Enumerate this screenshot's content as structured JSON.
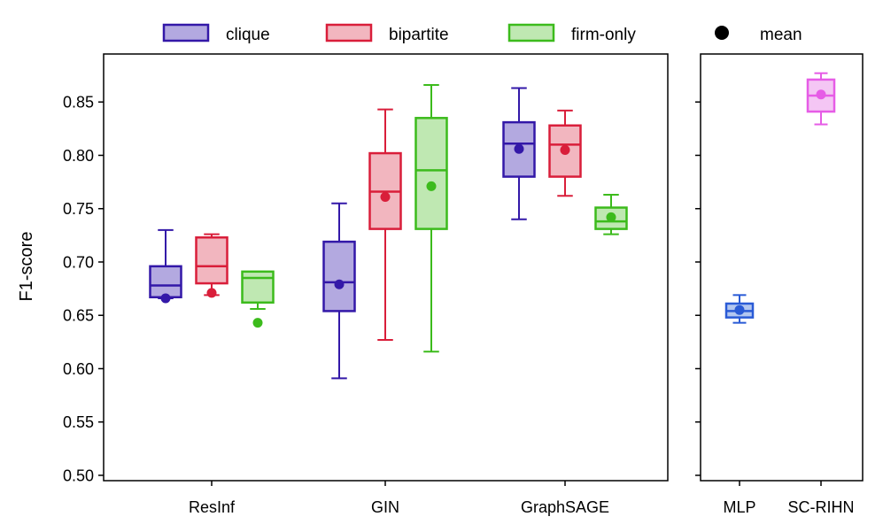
{
  "chart_data": [
    {
      "type": "box",
      "panel": "left",
      "ylabel": "F1-score",
      "ylim": [
        0.495,
        0.895
      ],
      "yticks": [
        "0.50",
        "0.55",
        "0.60",
        "0.65",
        "0.70",
        "0.75",
        "0.80",
        "0.85"
      ],
      "categories": [
        "ResInf",
        "GIN",
        "GraphSAGE"
      ],
      "series": [
        {
          "name": "clique",
          "edge_color": "#3318a8",
          "fill_color": "#b3a9e0",
          "boxes": [
            {
              "min": 0.666,
              "q1": 0.667,
              "median": 0.678,
              "q3": 0.696,
              "max": 0.73,
              "mean": 0.666
            },
            {
              "min": 0.591,
              "q1": 0.654,
              "median": 0.681,
              "q3": 0.719,
              "max": 0.755,
              "mean": 0.679
            },
            {
              "min": 0.74,
              "q1": 0.78,
              "median": 0.811,
              "q3": 0.831,
              "max": 0.863,
              "mean": 0.806
            }
          ]
        },
        {
          "name": "bipartite",
          "edge_color": "#d91e3a",
          "fill_color": "#f2b6bf",
          "boxes": [
            {
              "min": 0.669,
              "q1": 0.68,
              "median": 0.696,
              "q3": 0.723,
              "max": 0.726,
              "mean": 0.671
            },
            {
              "min": 0.627,
              "q1": 0.731,
              "median": 0.766,
              "q3": 0.802,
              "max": 0.843,
              "mean": 0.761
            },
            {
              "min": 0.762,
              "q1": 0.78,
              "median": 0.81,
              "q3": 0.828,
              "max": 0.842,
              "mean": 0.805
            }
          ]
        },
        {
          "name": "firm-only",
          "edge_color": "#3cbb1c",
          "fill_color": "#bfe8b2",
          "boxes": [
            {
              "min": 0.656,
              "q1": 0.662,
              "median": 0.685,
              "q3": 0.691,
              "max": 0.691,
              "mean": 0.643
            },
            {
              "min": 0.616,
              "q1": 0.731,
              "median": 0.786,
              "q3": 0.835,
              "max": 0.866,
              "mean": 0.771
            },
            {
              "min": 0.726,
              "q1": 0.731,
              "median": 0.738,
              "q3": 0.751,
              "max": 0.763,
              "mean": 0.742
            }
          ]
        }
      ]
    },
    {
      "type": "box",
      "panel": "right",
      "ylim": [
        0.495,
        0.895
      ],
      "categories": [
        "MLP",
        "SC-RIHN"
      ],
      "boxes": [
        {
          "name": "MLP",
          "edge_color": "#2a5bd6",
          "fill_color": "#b3c7f0",
          "min": 0.643,
          "q1": 0.648,
          "median": 0.654,
          "q3": 0.661,
          "max": 0.669,
          "mean": 0.655
        },
        {
          "name": "SC-RIHN",
          "edge_color": "#e65ce6",
          "fill_color": "#f4c6f4",
          "min": 0.829,
          "q1": 0.841,
          "median": 0.856,
          "q3": 0.871,
          "max": 0.877,
          "mean": 0.857
        }
      ]
    }
  ],
  "legend": {
    "placement": "top",
    "items": [
      "clique",
      "bipartite",
      "firm-only"
    ],
    "mean_label": "mean"
  }
}
